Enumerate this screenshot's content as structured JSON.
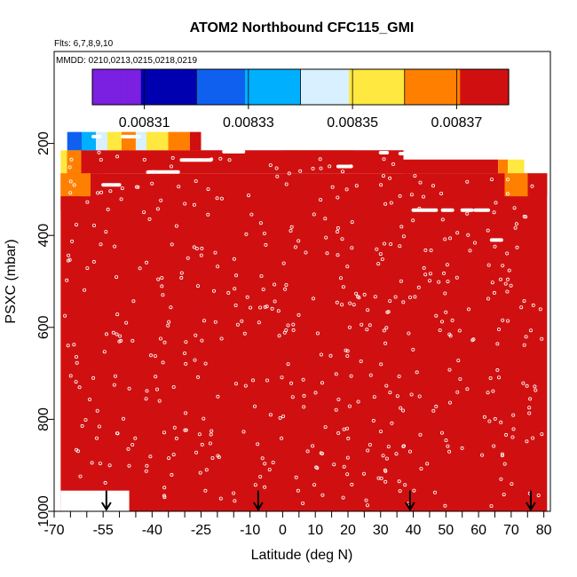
{
  "chart_data": {
    "type": "heatmap",
    "title": "ATOM2 Northbound CFC115_GMI",
    "flights_label": "Flts: 6,7,8,9,10",
    "dates_label": "MMDD: 0210,0213,0215,0218,0219",
    "xlabel": "Latitude (deg N)",
    "ylabel": "PSXC (mbar)",
    "xlim": [
      -70,
      82
    ],
    "ylim": [
      1000,
      0
    ],
    "x_ticks": [
      -70,
      -55,
      -40,
      -25,
      -10,
      0,
      10,
      20,
      30,
      40,
      50,
      60,
      70,
      80
    ],
    "x_minor_ticks": [
      -65,
      -60,
      -50,
      -45,
      -35,
      -30,
      -20,
      -15,
      -5,
      5,
      15,
      25,
      35,
      45,
      55,
      65,
      75
    ],
    "y_ticks": [
      200,
      400,
      600,
      800,
      1000
    ],
    "colorbar": {
      "min": 0.0083,
      "max": 0.00838,
      "tick_values": [
        0.00831,
        0.00833,
        0.00835,
        0.00837
      ],
      "tick_labels": [
        "0.00831",
        "0.00833",
        "0.00835",
        "0.00837"
      ],
      "boundaries": [
        0.0083,
        0.00831,
        0.00832,
        0.00833,
        0.00834,
        0.00835,
        0.00836,
        0.00837,
        0.00838
      ],
      "colors": [
        "#7b1fe0",
        "#0000b0",
        "#1060f0",
        "#00b0ff",
        "#d8f0ff",
        "#ffe840",
        "#ff8000",
        "#d01010",
        "#a01818"
      ]
    },
    "background_value": 0.008378,
    "bands": [
      {
        "x0": -66,
        "x1": -45,
        "p0": 175,
        "p1": 215,
        "gradient": true,
        "from": 0.00832,
        "to": 0.008372
      },
      {
        "x0": -45,
        "x1": -25,
        "p0": 175,
        "p1": 215,
        "gradient": true,
        "from": 0.008345,
        "to": 0.008376
      },
      {
        "x0": 0,
        "x1": 37,
        "p0": 215,
        "p1": 240,
        "gradient": true,
        "from": 0.008372,
        "to": 0.008378
      },
      {
        "x0": -68,
        "x1": -60,
        "p0": 215,
        "p1": 265,
        "gradient": true,
        "from": 0.008356,
        "to": 0.008374
      },
      {
        "x0": -60,
        "x1": 22,
        "p0": 215,
        "p1": 240,
        "gradient": false,
        "from": 0.008374,
        "to": 0.008374
      },
      {
        "x0": 37,
        "x1": 66,
        "p0": 235,
        "p1": 265,
        "gradient": true,
        "from": 0.008374,
        "to": 0.008372
      },
      {
        "x0": 66,
        "x1": 74,
        "p0": 235,
        "p1": 265,
        "gradient": true,
        "from": 0.008362,
        "to": 0.008356
      },
      {
        "x0": -68,
        "x1": -55,
        "p0": 265,
        "p1": 315,
        "gradient": true,
        "from": 0.008362,
        "to": 0.008374
      },
      {
        "x0": 37,
        "x1": 68,
        "p0": 265,
        "p1": 315,
        "gradient": true,
        "from": 0.008374,
        "to": 0.008376
      },
      {
        "x0": 68,
        "x1": 81,
        "p0": 265,
        "p1": 315,
        "gradient": true,
        "from": 0.008366,
        "to": 0.008374
      },
      {
        "x0": -68,
        "x1": -62,
        "p0": 315,
        "p1": 345,
        "gradient": false,
        "from": 0.008376,
        "to": 0.008376
      }
    ],
    "flight_segments": [
      {
        "x0": -58,
        "x1": -56,
        "p": 185
      },
      {
        "x0": -49,
        "x1": -44,
        "p": 185
      },
      {
        "x0": -10,
        "x1": -8,
        "p": 196
      },
      {
        "x0": -18,
        "x1": -12,
        "p": 218
      },
      {
        "x0": -31,
        "x1": -22,
        "p": 236
      },
      {
        "x0": -41,
        "x1": -32,
        "p": 262
      },
      {
        "x0": -55,
        "x1": -50,
        "p": 290
      },
      {
        "x0": 17,
        "x1": 21,
        "p": 250
      },
      {
        "x0": 30,
        "x1": 32,
        "p": 220
      },
      {
        "x0": 36,
        "x1": 38,
        "p": 222
      },
      {
        "x0": 40,
        "x1": 47,
        "p": 345
      },
      {
        "x0": 49,
        "x1": 52,
        "p": 345
      },
      {
        "x0": 55,
        "x1": 58,
        "p": 345
      },
      {
        "x0": 59,
        "x1": 63,
        "p": 345
      },
      {
        "x0": 64,
        "x1": 67,
        "p": 410
      }
    ],
    "profile_arrows": [
      -54,
      -7.5,
      39,
      76
    ]
  }
}
